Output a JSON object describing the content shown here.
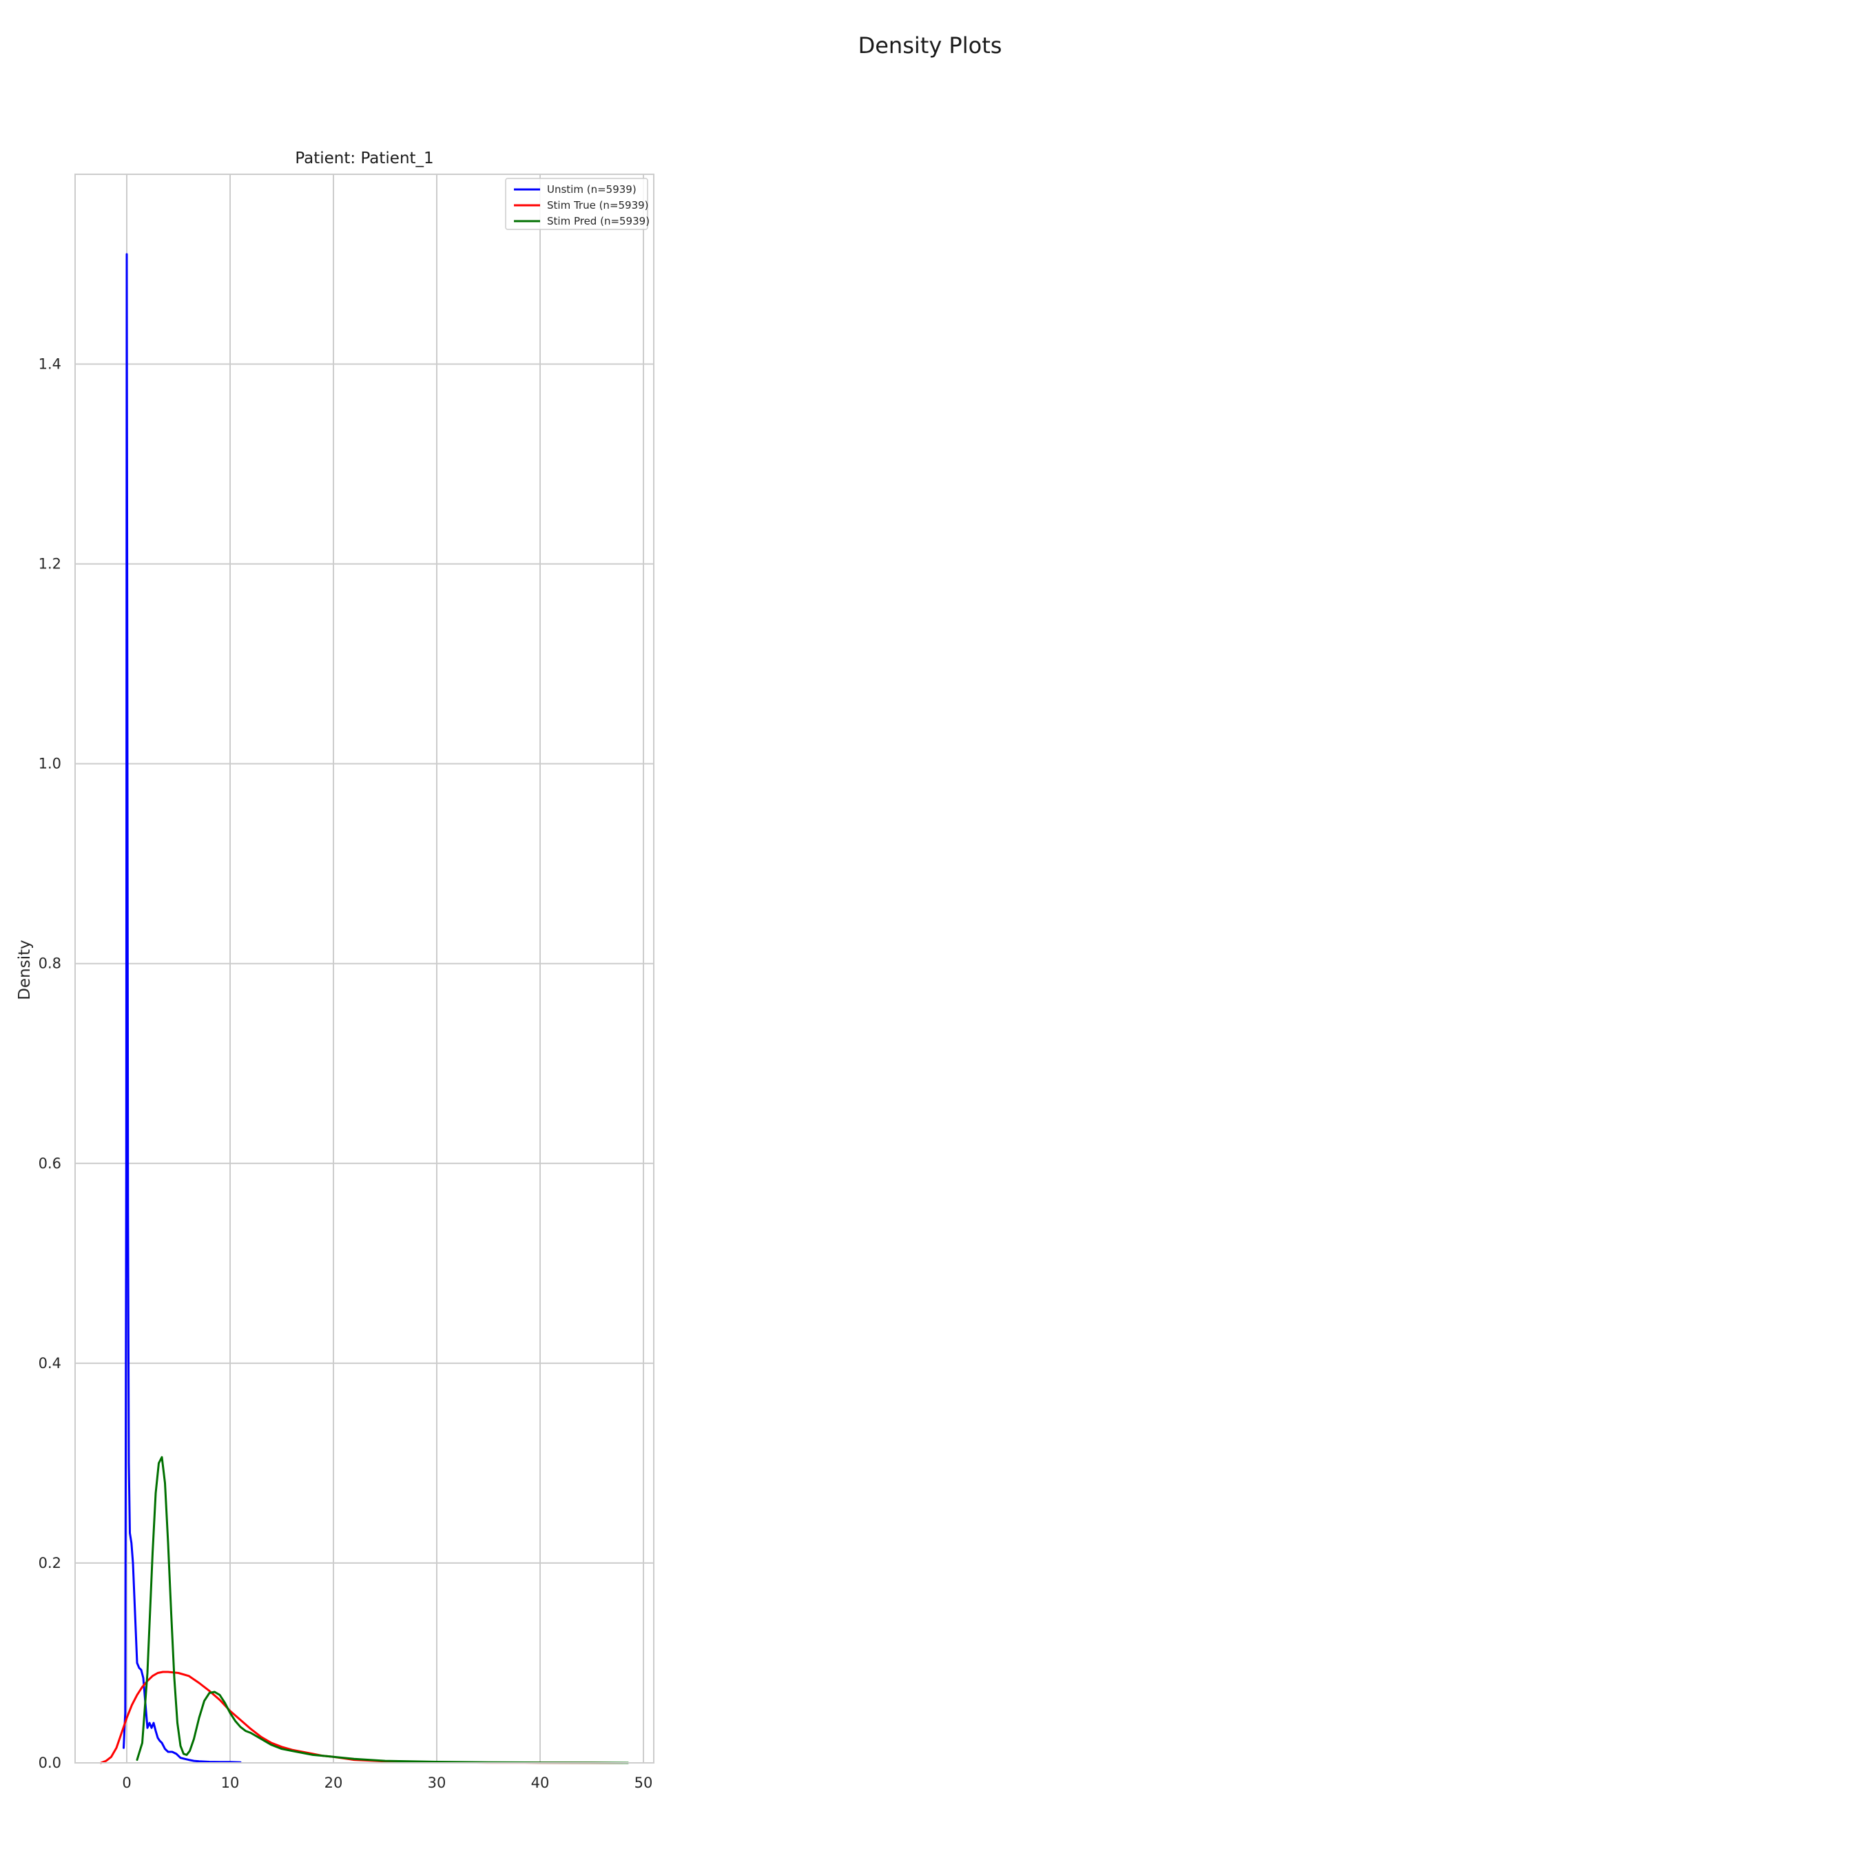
{
  "figure": {
    "suptitle": "Density Plots"
  },
  "chart_data": {
    "type": "line",
    "title": "Patient: Patient_1",
    "xlabel": "",
    "ylabel": "Density",
    "xlim": [
      -5,
      51
    ],
    "ylim": [
      0,
      1.59
    ],
    "xticks": [
      0,
      10,
      20,
      30,
      40,
      50
    ],
    "yticks": [
      0.0,
      0.2,
      0.4,
      0.6,
      0.8,
      1.0,
      1.2,
      1.4
    ],
    "grid": true,
    "legend_position": "top-right",
    "series": [
      {
        "name": "Unstim (n=5939)",
        "color": "#0000ff",
        "x": [
          -0.3,
          -0.15,
          -0.05,
          0.0,
          0.05,
          0.12,
          0.2,
          0.3,
          0.45,
          0.6,
          0.8,
          1.0,
          1.2,
          1.4,
          1.6,
          1.8,
          2.0,
          2.2,
          2.4,
          2.6,
          2.8,
          3.0,
          3.2,
          3.4,
          3.7,
          4.0,
          4.4,
          4.8,
          5.2,
          5.6,
          6.0,
          6.5,
          7.0,
          8.0,
          9.0,
          10.0,
          11.0
        ],
        "y": [
          0.015,
          0.05,
          0.6,
          1.51,
          1.1,
          0.55,
          0.3,
          0.23,
          0.22,
          0.2,
          0.15,
          0.1,
          0.095,
          0.093,
          0.085,
          0.06,
          0.035,
          0.04,
          0.035,
          0.04,
          0.032,
          0.025,
          0.022,
          0.02,
          0.014,
          0.011,
          0.011,
          0.009,
          0.005,
          0.004,
          0.003,
          0.002,
          0.0015,
          0.001,
          0.0008,
          0.0008,
          0.0005
        ]
      },
      {
        "name": "Stim True (n=5939)",
        "color": "#ff0000",
        "x": [
          -2.5,
          -2.0,
          -1.5,
          -1.0,
          -0.5,
          0.0,
          0.5,
          1.0,
          1.5,
          2.0,
          2.5,
          3.0,
          3.5,
          4.0,
          5.0,
          6.0,
          7.0,
          8.0,
          9.0,
          10.0,
          11.0,
          12.0,
          13.0,
          14.0,
          15.0,
          16.0,
          17.0,
          18.0,
          19.0,
          20.0,
          22.0,
          25.0,
          30.0,
          35.0,
          40.0,
          45.0,
          48.0
        ],
        "y": [
          0.0,
          0.002,
          0.006,
          0.015,
          0.03,
          0.045,
          0.058,
          0.068,
          0.076,
          0.082,
          0.087,
          0.09,
          0.091,
          0.091,
          0.09,
          0.087,
          0.08,
          0.072,
          0.063,
          0.052,
          0.043,
          0.034,
          0.026,
          0.02,
          0.016,
          0.013,
          0.011,
          0.009,
          0.007,
          0.006,
          0.003,
          0.0015,
          0.0006,
          0.0003,
          0.0002,
          0.0001,
          0.0
        ]
      },
      {
        "name": "Stim Pred (n=5939)",
        "color": "#007000",
        "x": [
          1.0,
          1.5,
          2.0,
          2.5,
          2.8,
          3.1,
          3.4,
          3.7,
          4.0,
          4.3,
          4.6,
          4.9,
          5.2,
          5.5,
          5.8,
          6.1,
          6.5,
          7.0,
          7.5,
          8.0,
          8.5,
          9.0,
          9.5,
          10.0,
          10.5,
          11.0,
          11.5,
          12.0,
          13.0,
          14.0,
          15.0,
          16.0,
          17.0,
          18.0,
          19.0,
          20.0,
          22.0,
          25.0,
          30.0,
          35.0,
          40.0,
          45.0,
          48.5
        ],
        "y": [
          0.003,
          0.02,
          0.09,
          0.21,
          0.27,
          0.3,
          0.306,
          0.28,
          0.22,
          0.15,
          0.085,
          0.04,
          0.017,
          0.009,
          0.008,
          0.012,
          0.024,
          0.045,
          0.062,
          0.07,
          0.071,
          0.068,
          0.06,
          0.05,
          0.042,
          0.036,
          0.032,
          0.03,
          0.024,
          0.018,
          0.014,
          0.012,
          0.01,
          0.008,
          0.007,
          0.006,
          0.004,
          0.002,
          0.001,
          0.0005,
          0.0003,
          0.0002,
          0.0
        ]
      }
    ]
  }
}
